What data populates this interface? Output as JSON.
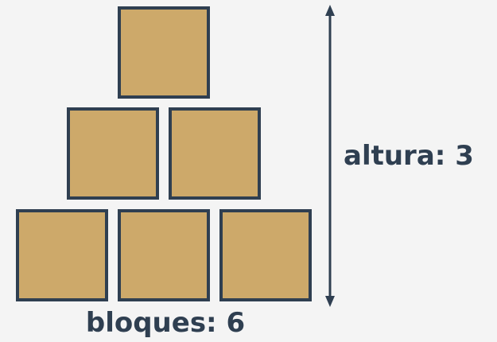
{
  "colors": {
    "background": "#f4f4f4",
    "block_fill": "#cda96a",
    "block_border": "#2f3f51",
    "text": "#2f3f51"
  },
  "blocks": {
    "rows": [
      3,
      2,
      1
    ]
  },
  "labels": {
    "height": "altura: 3",
    "blocks": "bloques: 6"
  }
}
